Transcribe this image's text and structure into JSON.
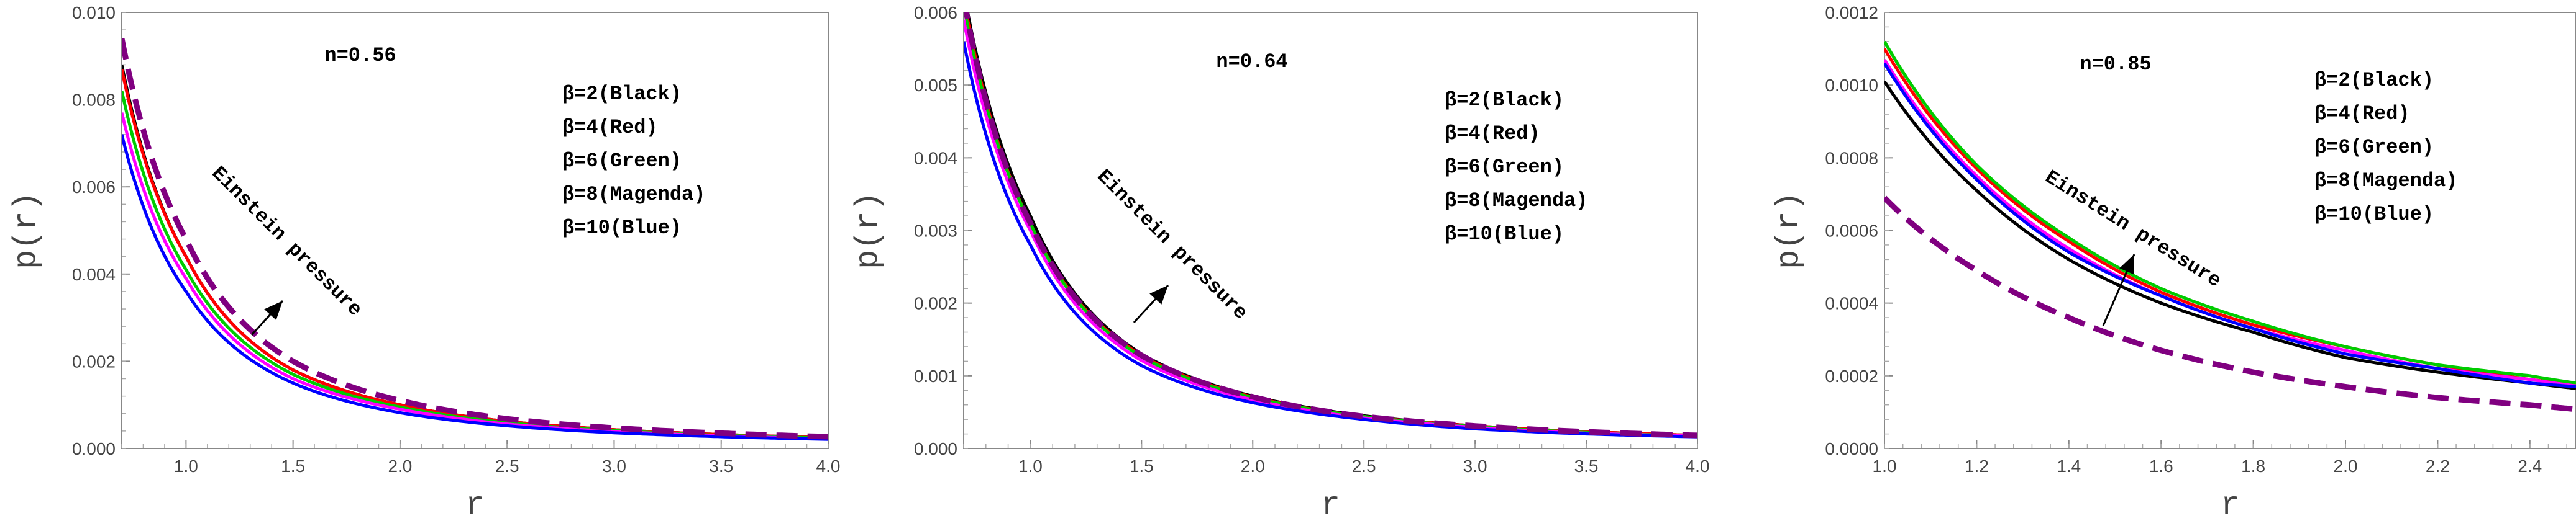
{
  "chart_data": [
    {
      "type": "line",
      "title": "n=0.56",
      "xlabel": "r",
      "ylabel": "p(r)",
      "xlim": [
        0.7,
        4.0
      ],
      "ylim": [
        0,
        0.01
      ],
      "xticks": [
        "1.0",
        "1.5",
        "2.0",
        "2.5",
        "3.0",
        "3.5",
        "4.0"
      ],
      "yticks": [
        "0.000",
        "0.002",
        "0.004",
        "0.006",
        "0.008",
        "0.010"
      ],
      "legend": [
        "β=2(Black)",
        "β=4(Red)",
        "β=6(Green)",
        "β=8(Magenda)",
        "β=10(Blue)"
      ],
      "annotation": "Einstein pressure",
      "x": [
        0.7,
        1.0,
        1.5,
        2.0,
        2.5,
        3.0,
        3.5,
        4.0
      ],
      "series": [
        {
          "color": "#000000",
          "dash": false,
          "values": [
            0.0088,
            0.0044,
            0.0018,
            0.001,
            0.00062,
            0.00043,
            0.00032,
            0.00025
          ]
        },
        {
          "color": "#ff0000",
          "dash": false,
          "values": [
            0.0087,
            0.0044,
            0.0018,
            0.001,
            0.00062,
            0.00043,
            0.00032,
            0.00025
          ]
        },
        {
          "color": "#00cc00",
          "dash": false,
          "values": [
            0.0082,
            0.0041,
            0.0017,
            0.00095,
            0.00059,
            0.00041,
            0.0003,
            0.00024
          ]
        },
        {
          "color": "#ff00ff",
          "dash": false,
          "values": [
            0.0077,
            0.0039,
            0.0016,
            0.0009,
            0.00056,
            0.00039,
            0.00029,
            0.00022
          ]
        },
        {
          "color": "#0000ff",
          "dash": false,
          "values": [
            0.0072,
            0.0036,
            0.0015,
            0.00082,
            0.00052,
            0.00036,
            0.00027,
            0.00021
          ]
        },
        {
          "color": "#800080",
          "dash": true,
          "values": [
            0.0094,
            0.0048,
            0.002,
            0.0011,
            0.00068,
            0.00047,
            0.00035,
            0.00027
          ]
        }
      ]
    },
    {
      "type": "line",
      "title": "n=0.64",
      "xlabel": "r",
      "ylabel": "p(r)",
      "xlim": [
        0.7,
        4.0
      ],
      "ylim": [
        0,
        0.006
      ],
      "xticks": [
        "1.0",
        "1.5",
        "2.0",
        "2.5",
        "3.0",
        "3.5",
        "4.0"
      ],
      "yticks": [
        "0.000",
        "0.001",
        "0.002",
        "0.003",
        "0.004",
        "0.005",
        "0.006"
      ],
      "legend": [
        "β=2(Black)",
        "β=4(Red)",
        "β=6(Green)",
        "β=8(Magenda)",
        "β=10(Blue)"
      ],
      "annotation": "Einstein pressure",
      "x": [
        0.7,
        1.0,
        1.5,
        2.0,
        2.5,
        3.0,
        3.5,
        4.0
      ],
      "series": [
        {
          "color": "#000000",
          "dash": false,
          "values": [
            0.0063,
            0.0032,
            0.0013,
            0.00072,
            0.00045,
            0.00031,
            0.00023,
            0.00018
          ]
        },
        {
          "color": "#ff0000",
          "dash": false,
          "values": [
            0.0062,
            0.0031,
            0.00128,
            0.00071,
            0.00044,
            0.00031,
            0.00023,
            0.00018
          ]
        },
        {
          "color": "#00cc00",
          "dash": false,
          "values": [
            0.0061,
            0.0031,
            0.00126,
            0.0007,
            0.00044,
            0.0003,
            0.00022,
            0.00017
          ]
        },
        {
          "color": "#ff00ff",
          "dash": false,
          "values": [
            0.0059,
            0.003,
            0.00121,
            0.00067,
            0.00042,
            0.00029,
            0.00021,
            0.00017
          ]
        },
        {
          "color": "#0000ff",
          "dash": false,
          "values": [
            0.0056,
            0.0028,
            0.00114,
            0.00063,
            0.0004,
            0.00027,
            0.0002,
            0.00016
          ]
        },
        {
          "color": "#800080",
          "dash": true,
          "values": [
            0.0062,
            0.0031,
            0.00128,
            0.00071,
            0.00044,
            0.00031,
            0.00023,
            0.00018
          ]
        }
      ]
    },
    {
      "type": "line",
      "title": "n=0.85",
      "xlabel": "r",
      "ylabel": "p(r)",
      "xlim": [
        1.0,
        2.5
      ],
      "ylim": [
        0,
        0.0012
      ],
      "xticks": [
        "1.0",
        "1.2",
        "1.4",
        "1.6",
        "1.8",
        "2.0",
        "2.2",
        "2.4"
      ],
      "yticks": [
        "0.0000",
        "0.0002",
        "0.0004",
        "0.0006",
        "0.0008",
        "0.0010",
        "0.0012"
      ],
      "legend": [
        "β=2(Black)",
        "β=4(Red)",
        "β=6(Green)",
        "β=8(Magenda)",
        "β=10(Blue)"
      ],
      "annotation": "Einstein pressure",
      "x": [
        1.0,
        1.2,
        1.4,
        1.6,
        1.8,
        2.0,
        2.2,
        2.4,
        2.5
      ],
      "series": [
        {
          "color": "#000000",
          "dash": false,
          "values": [
            0.00101,
            0.00071,
            0.00052,
            0.0004,
            0.00032,
            0.00025,
            0.00021,
            0.00018,
            0.000165
          ]
        },
        {
          "color": "#ff0000",
          "dash": false,
          "values": [
            0.0011,
            0.00077,
            0.00057,
            0.00043,
            0.00034,
            0.00028,
            0.00023,
            0.00019,
            0.000175
          ]
        },
        {
          "color": "#00cc00",
          "dash": false,
          "values": [
            0.00112,
            0.00078,
            0.00058,
            0.00044,
            0.00035,
            0.00028,
            0.00023,
            0.0002,
            0.00018
          ]
        },
        {
          "color": "#ff00ff",
          "dash": false,
          "values": [
            0.00107,
            0.00075,
            0.00055,
            0.00042,
            0.00033,
            0.00027,
            0.00022,
            0.00019,
            0.000172
          ]
        },
        {
          "color": "#0000ff",
          "dash": false,
          "values": [
            0.00106,
            0.00074,
            0.00054,
            0.00042,
            0.00033,
            0.00026,
            0.00022,
            0.00018,
            0.00017
          ]
        },
        {
          "color": "#800080",
          "dash": true,
          "values": [
            0.00069,
            0.00049,
            0.00036,
            0.00027,
            0.00021,
            0.00017,
            0.00014,
            0.00012,
            0.000108
          ]
        }
      ]
    }
  ]
}
